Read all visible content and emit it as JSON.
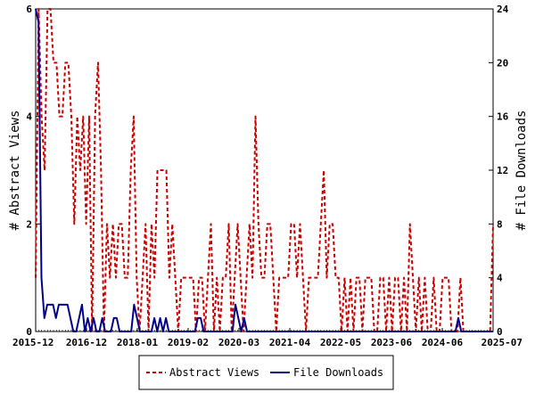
{
  "chart_data": {
    "type": "line",
    "ylabel": "# Abstract Views",
    "y2label": "# File Downloads",
    "ylim": [
      0,
      6
    ],
    "y2lim": [
      0,
      24
    ],
    "yticks": [
      "0",
      "2",
      "4",
      "6"
    ],
    "y2ticks": [
      "0",
      "4",
      "8",
      "12",
      "16",
      "20",
      "24"
    ],
    "xticks": [
      "2015-12",
      "2016-12",
      "2018-01",
      "2019-02",
      "2020-03",
      "2021-04",
      "2022-05",
      "2023-06",
      "2024-06",
      "2025-07"
    ],
    "grid": false,
    "legend_position": "bottom",
    "series": [
      {
        "name": "Abstract Views",
        "axis": "left",
        "color": "#cc0000",
        "style": "dashed",
        "values": [
          1,
          6,
          4,
          3,
          6,
          6,
          5,
          5,
          4,
          4,
          5,
          5,
          4,
          2,
          4,
          3,
          4,
          2,
          4,
          0,
          4,
          5,
          3,
          0,
          2,
          1,
          2,
          1,
          2,
          2,
          1,
          1,
          3,
          4,
          1,
          0,
          1,
          2,
          0,
          2,
          1,
          3,
          3,
          3,
          3,
          1,
          2,
          1,
          0,
          1,
          1,
          1,
          1,
          1,
          0,
          1,
          1,
          0,
          1,
          2,
          0,
          1,
          0,
          1,
          1,
          2,
          0,
          1,
          2,
          1,
          0,
          1,
          2,
          1,
          4,
          2,
          1,
          1,
          2,
          2,
          1,
          0,
          1,
          1,
          1,
          1,
          2,
          2,
          1,
          2,
          1,
          0,
          1,
          1,
          1,
          1,
          2,
          3,
          1,
          2,
          2,
          1,
          1,
          0,
          1,
          0,
          1,
          0,
          1,
          1,
          0,
          1,
          1,
          1,
          0,
          0,
          1,
          1,
          0,
          1,
          0,
          1,
          1,
          0,
          1,
          0,
          2,
          1,
          0,
          1,
          0,
          1,
          0,
          0,
          1,
          0,
          0,
          1,
          1,
          1,
          0,
          0,
          0,
          1,
          0,
          0,
          0,
          0,
          0,
          0,
          0,
          0,
          0,
          0,
          2
        ]
      },
      {
        "name": "File Downloads",
        "axis": "right",
        "color": "#00008b",
        "style": "solid",
        "values": [
          24,
          23,
          4,
          1,
          2,
          2,
          2,
          1,
          2,
          2,
          2,
          2,
          1,
          0,
          0,
          1,
          2,
          0,
          1,
          0,
          1,
          0,
          0,
          1,
          0,
          0,
          0,
          1,
          1,
          0,
          0,
          0,
          0,
          0,
          2,
          1,
          0,
          0,
          0,
          0,
          0,
          1,
          0,
          1,
          0,
          1,
          0,
          0,
          0,
          0,
          0,
          0,
          0,
          0,
          0,
          0,
          1,
          1,
          0,
          0,
          0,
          0,
          0,
          0,
          0,
          0,
          0,
          0,
          0,
          2,
          1,
          0,
          1,
          0,
          0,
          0,
          0,
          0,
          0,
          0,
          0,
          0,
          0,
          0,
          0,
          0,
          0,
          0,
          0,
          0,
          0,
          0,
          0,
          0,
          0,
          0,
          0,
          0,
          0,
          0,
          0,
          0,
          0,
          0,
          0,
          0,
          0,
          0,
          0,
          0,
          0,
          0,
          0,
          0,
          0,
          0,
          0,
          0,
          0,
          0,
          0,
          0,
          0,
          0,
          0,
          0,
          0,
          0,
          0,
          0,
          0,
          0,
          0,
          0,
          0,
          0,
          0,
          0,
          0,
          0,
          0,
          0,
          0,
          0,
          0,
          0,
          1,
          0,
          0,
          0,
          0,
          0,
          0,
          0,
          0,
          0,
          0,
          0,
          0
        ]
      }
    ]
  }
}
